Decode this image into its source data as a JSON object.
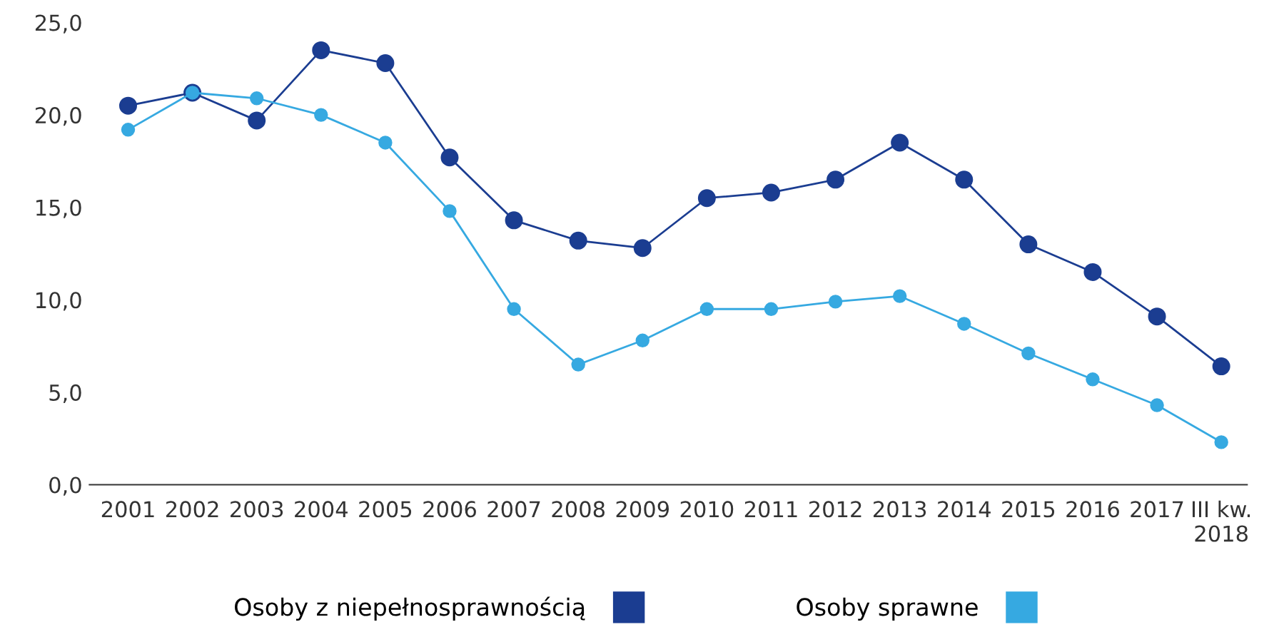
{
  "chart_data": {
    "type": "line",
    "categories": [
      "2001",
      "2002",
      "2003",
      "2004",
      "2005",
      "2006",
      "2007",
      "2008",
      "2009",
      "2010",
      "2011",
      "2012",
      "2013",
      "2014",
      "2015",
      "2016",
      "2017",
      "III kw.\n2018"
    ],
    "series": [
      {
        "name": "Osoby z niepełnosprawnością",
        "color": "#1b3d91",
        "values": [
          20.5,
          21.2,
          19.7,
          23.5,
          22.8,
          17.7,
          14.3,
          13.2,
          12.8,
          15.5,
          15.8,
          16.5,
          18.5,
          16.5,
          13.0,
          11.5,
          9.1,
          6.4
        ]
      },
      {
        "name": "Osoby sprawne",
        "color": "#36a9e1",
        "values": [
          19.2,
          21.2,
          20.9,
          20.0,
          18.5,
          14.8,
          9.5,
          6.5,
          7.8,
          9.5,
          9.5,
          9.9,
          10.2,
          8.7,
          7.1,
          5.7,
          4.3,
          2.3
        ]
      }
    ],
    "ylim": [
      0,
      25
    ],
    "yticks": [
      {
        "value": 0,
        "label": "0,0"
      },
      {
        "value": 5,
        "label": "5,0"
      },
      {
        "value": 10,
        "label": "10,0"
      },
      {
        "value": 15,
        "label": "15,0"
      },
      {
        "value": 20,
        "label": "20,0"
      },
      {
        "value": 25,
        "label": "25,0"
      }
    ],
    "grid": false,
    "legend": "bottom",
    "marker": "circle",
    "line_style": "solid"
  }
}
